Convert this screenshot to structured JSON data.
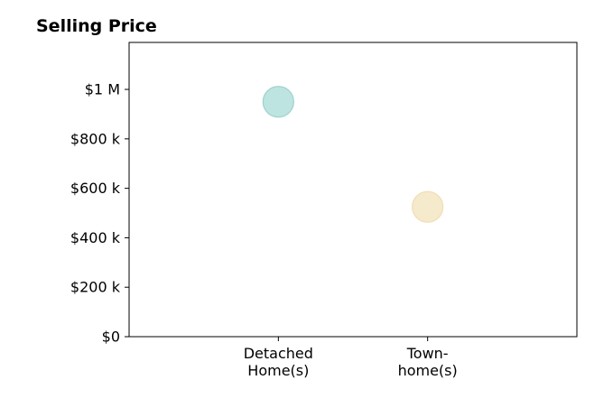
{
  "chart_data": {
    "type": "scatter",
    "title": "Selling Price",
    "xlabel": "",
    "ylabel": "",
    "categories": [
      [
        "Detached",
        "Home(s)"
      ],
      [
        "Town-",
        "home(s)"
      ]
    ],
    "values": [
      950000,
      525000
    ],
    "point_colors": [
      "#b2dfdb",
      "#f5e6c4"
    ],
    "point_edge_colors": [
      "#9fd3cd",
      "#f0ddb3"
    ],
    "yticks": [
      0,
      200000,
      400000,
      600000,
      800000,
      1000000
    ],
    "ytick_labels": [
      "$0",
      "$200 k",
      "$400 k",
      "$600 k",
      "$800 k",
      "$1 M"
    ],
    "ylim": [
      0,
      1190000
    ],
    "xlim": [
      -1,
      2
    ],
    "grid": false,
    "legend": "none"
  }
}
